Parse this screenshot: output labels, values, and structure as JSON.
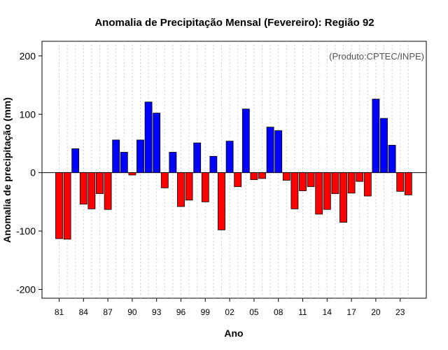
{
  "chart_data": {
    "type": "bar",
    "title": "Anomalia de Precipitação Mensal (Fevereiro): Região 92",
    "source": "(Produto:CPTEC/INPE)",
    "xlabel": "Ano",
    "ylabel": "Anomalia de precipitação (mm)",
    "ylim": [
      -215,
      225
    ],
    "yticks": [
      -200,
      -100,
      0,
      100,
      200
    ],
    "xtick_labels": [
      "81",
      "84",
      "87",
      "90",
      "93",
      "96",
      "99",
      "02",
      "05",
      "08",
      "11",
      "14",
      "17",
      "20",
      "23"
    ],
    "categories": [
      "1981",
      "1982",
      "1983",
      "1984",
      "1985",
      "1986",
      "1987",
      "1988",
      "1989",
      "1990",
      "1991",
      "1992",
      "1993",
      "1994",
      "1995",
      "1996",
      "1997",
      "1998",
      "1999",
      "2000",
      "2001",
      "2002",
      "2003",
      "2004",
      "2005",
      "2006",
      "2007",
      "2008",
      "2009",
      "2010",
      "2011",
      "2012",
      "2013",
      "2014",
      "2015",
      "2016",
      "2017",
      "2018",
      "2019",
      "2020",
      "2021",
      "2022",
      "2023",
      "2024"
    ],
    "values": [
      -113,
      -114,
      41,
      -54,
      -62,
      -36,
      -63,
      56,
      35,
      -4,
      56,
      121,
      102,
      -26,
      35,
      -58,
      -47,
      51,
      -50,
      28,
      -98,
      54,
      -24,
      109,
      -12,
      -10,
      78,
      72,
      -13,
      -62,
      -31,
      -24,
      -71,
      -63,
      -36,
      -85,
      -35,
      -15,
      -40,
      126,
      93,
      47,
      -32,
      -38
    ],
    "positive_color": "#0000ff",
    "negative_color": "#ff0000"
  }
}
